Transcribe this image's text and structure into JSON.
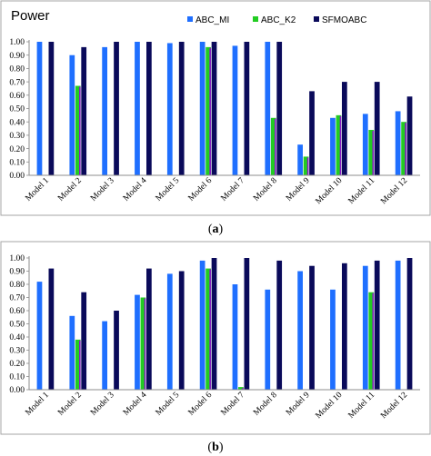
{
  "colors": {
    "ABC_MI": "#1f6fff",
    "ABC_K2": "#22cc22",
    "SFMOABC": "#0a0a5a",
    "frame": "#a6a6a6",
    "axis": "#8c8c8c",
    "k2_shadow": "#8a18c8"
  },
  "chart_data": [
    {
      "type": "bar",
      "title": "Power",
      "caption": "a",
      "categories": [
        "Model 1",
        "Model 2",
        "Model 3",
        "Model 4",
        "Model 5",
        "Model 6",
        "Model 7",
        "Model 8",
        "Model 9",
        "Model 10",
        "Model 11",
        "Model 12"
      ],
      "y_ticks": [
        "0.00",
        "0.10",
        "0.20",
        "0.30",
        "0.40",
        "0.50",
        "0.60",
        "0.70",
        "0.80",
        "0.90",
        "1.00"
      ],
      "ylim": [
        0,
        1
      ],
      "legend_position": "top-right",
      "grid": false,
      "series": [
        {
          "name": "ABC_MI",
          "values": [
            1.0,
            0.9,
            0.96,
            1.0,
            0.99,
            1.0,
            0.97,
            1.0,
            0.23,
            0.43,
            0.46,
            0.48
          ]
        },
        {
          "name": "ABC_K2",
          "values": [
            0.0,
            0.67,
            0.0,
            0.0,
            0.0,
            0.96,
            0.0,
            0.43,
            0.14,
            0.45,
            0.34,
            0.4
          ]
        },
        {
          "name": "SFMOABC",
          "values": [
            1.0,
            0.96,
            1.0,
            1.0,
            1.0,
            1.0,
            1.0,
            1.0,
            0.63,
            0.7,
            0.7,
            0.59
          ]
        }
      ]
    },
    {
      "type": "bar",
      "caption": "b",
      "categories": [
        "Model 1",
        "Model 2",
        "Model 3",
        "Model 4",
        "Model 5",
        "Model 6",
        "Model 7",
        "Model 8",
        "Model 9",
        "Model 10",
        "Model 11",
        "Model 12"
      ],
      "y_ticks": [
        "0.00",
        "0.10",
        "0.20",
        "0.30",
        "0.40",
        "0.50",
        "0.60",
        "0.70",
        "0.80",
        "0.90",
        "1.00"
      ],
      "ylim": [
        0,
        1
      ],
      "grid": false,
      "series": [
        {
          "name": "ABC_MI",
          "values": [
            0.82,
            0.56,
            0.52,
            0.72,
            0.88,
            0.98,
            0.8,
            0.76,
            0.9,
            0.76,
            0.94,
            0.98
          ]
        },
        {
          "name": "ABC_K2",
          "values": [
            0.0,
            0.38,
            0.0,
            0.7,
            0.0,
            0.92,
            0.02,
            0.0,
            0.0,
            0.0,
            0.74,
            0.0
          ]
        },
        {
          "name": "SFMOABC",
          "values": [
            0.92,
            0.74,
            0.6,
            0.92,
            0.9,
            1.0,
            1.0,
            0.98,
            0.94,
            0.96,
            0.98,
            1.0
          ]
        }
      ]
    }
  ]
}
